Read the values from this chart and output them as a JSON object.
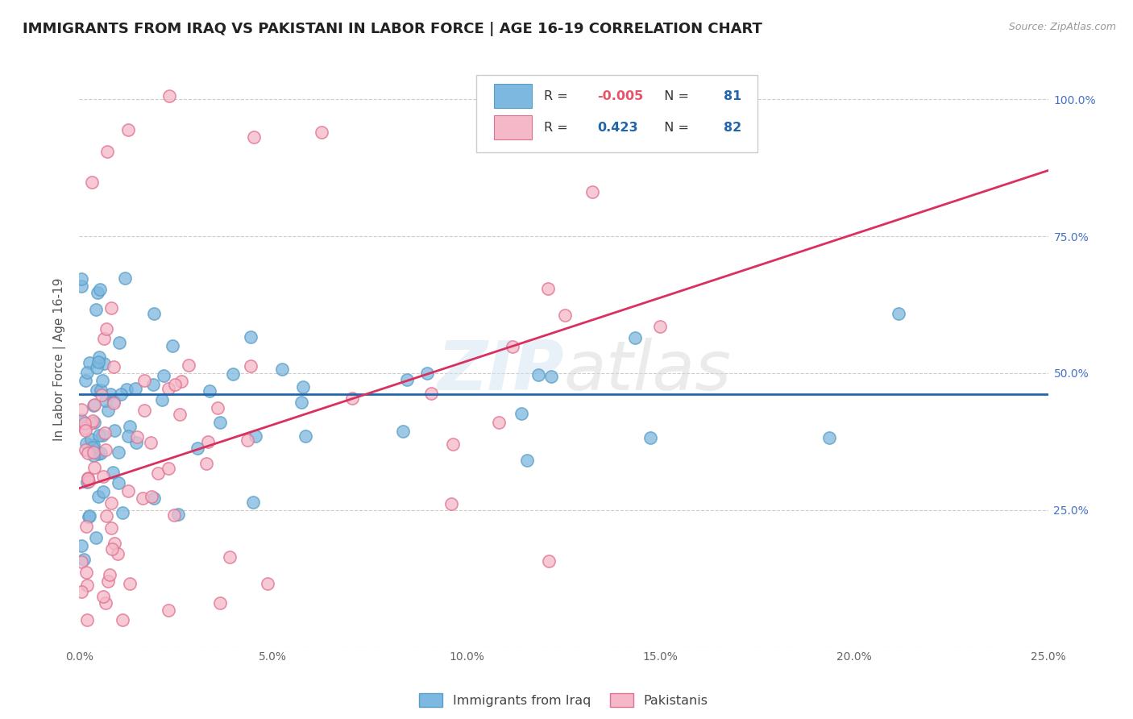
{
  "title": "IMMIGRANTS FROM IRAQ VS PAKISTANI IN LABOR FORCE | AGE 16-19 CORRELATION CHART",
  "source": "Source: ZipAtlas.com",
  "ylabel": "In Labor Force | Age 16-19",
  "xlim": [
    0.0,
    0.25
  ],
  "ylim": [
    0.0,
    1.05
  ],
  "xticks": [
    0.0,
    0.05,
    0.1,
    0.15,
    0.2,
    0.25
  ],
  "yticks": [
    0.0,
    0.25,
    0.5,
    0.75,
    1.0
  ],
  "xtick_labels": [
    "0.0%",
    "5.0%",
    "10.0%",
    "15.0%",
    "20.0%",
    "25.0%"
  ],
  "ytick_right_labels": [
    "",
    "25.0%",
    "50.0%",
    "75.0%",
    "100.0%"
  ],
  "iraq_R": "-0.005",
  "iraq_N": "81",
  "pak_R": "0.423",
  "pak_N": "82",
  "iraq_color": "#7cb8e0",
  "iraq_edge_color": "#5a9ec7",
  "pak_color": "#f4b8c8",
  "pak_edge_color": "#e07090",
  "iraq_trend_color": "#2166ac",
  "pak_trend_color": "#d93060",
  "watermark": "ZIPatlas",
  "title_fontsize": 13,
  "axis_label_fontsize": 11,
  "tick_fontsize": 10,
  "iraq_trend_y0": 0.462,
  "iraq_trend_y1": 0.462,
  "pak_trend_y0": 0.29,
  "pak_trend_y1": 0.87
}
